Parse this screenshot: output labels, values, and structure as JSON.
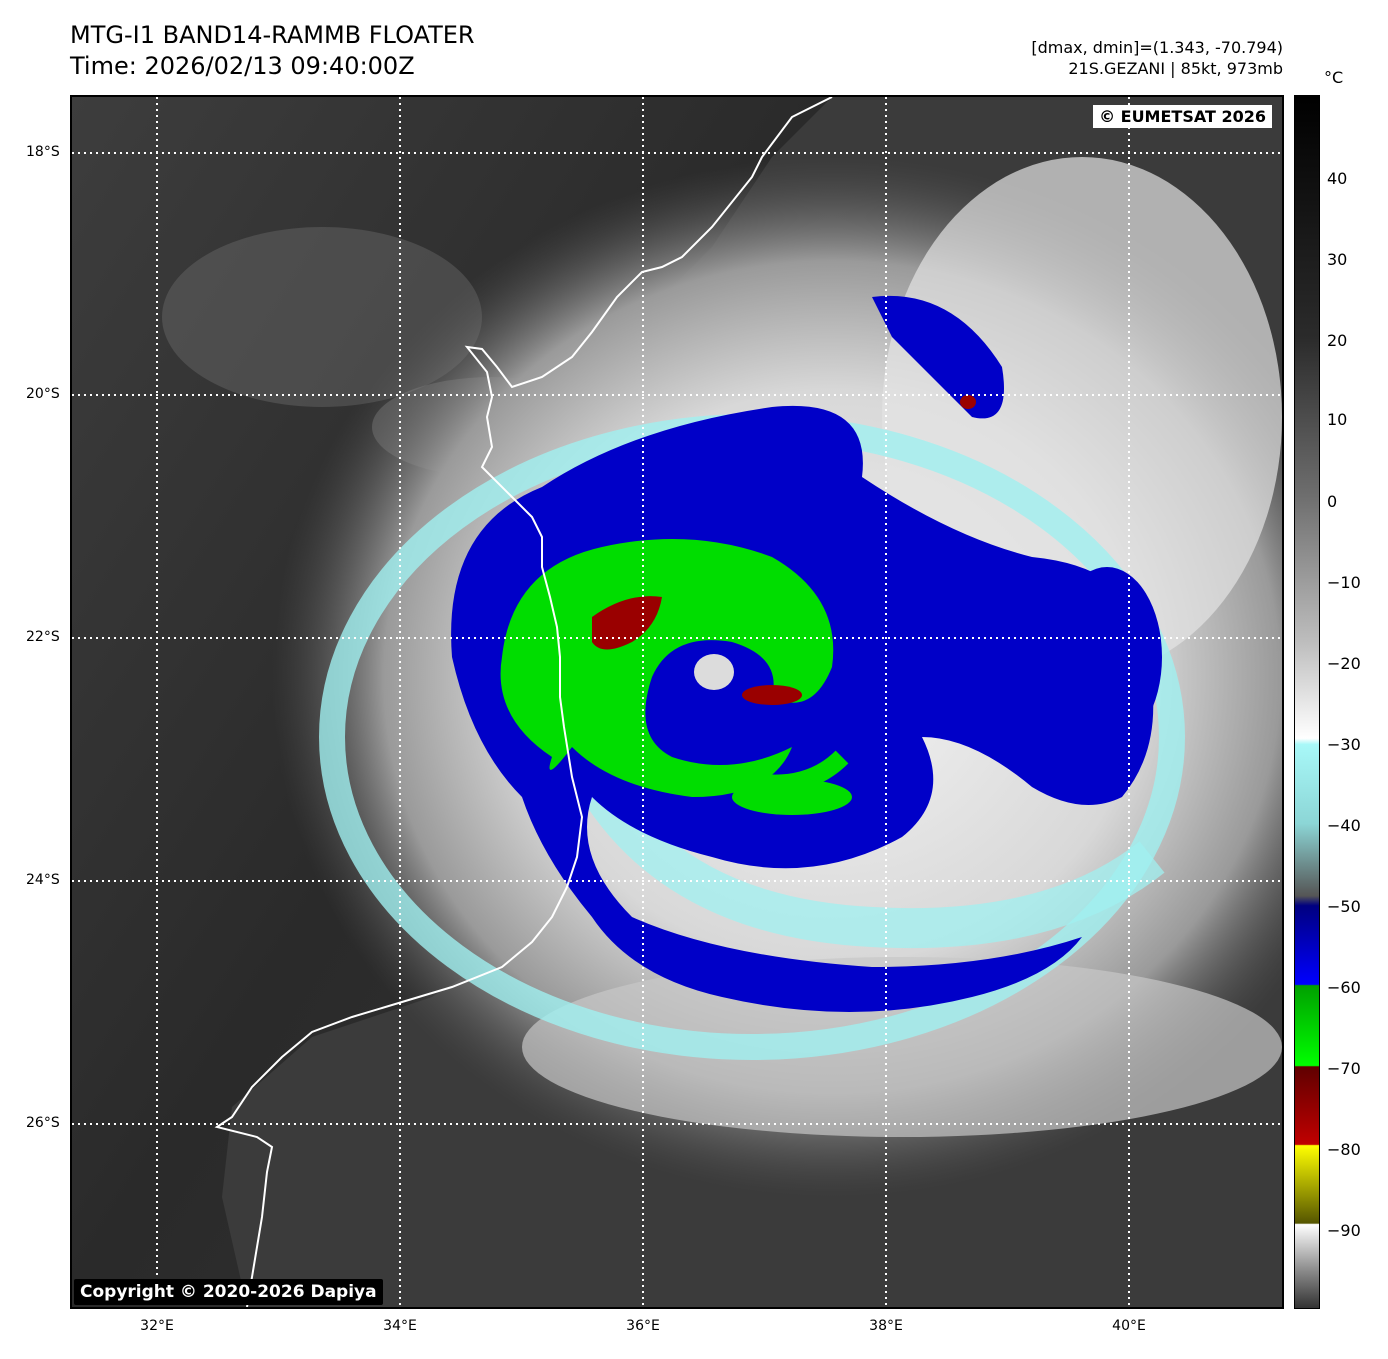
{
  "header": {
    "title_line1": "MTG-I1 BAND14-RAMMB FLOATER",
    "title_line2": "Time: 2026/02/13 09:40:00Z",
    "meta_line1": "[dmax, dmin]=(1.343, -70.794)",
    "meta_line2": "21S.GEZANI | 85kt, 973mb"
  },
  "map": {
    "eumetsat_credit": "© EUMETSAT 2026",
    "copyright": "Copyright © 2020-2026 Dapiya",
    "lat_labels": [
      "18°S",
      "20°S",
      "22°S",
      "24°S",
      "26°S"
    ],
    "lon_labels": [
      "32°E",
      "34°E",
      "36°E",
      "38°E",
      "40°E"
    ]
  },
  "colorbar": {
    "unit": "°C",
    "tick_labels": [
      "40",
      "30",
      "20",
      "10",
      "0",
      "−10",
      "−20",
      "−30",
      "−40",
      "−50",
      "−60",
      "−70",
      "−80",
      "−90"
    ]
  },
  "colors": {
    "land": "#333333",
    "coast": "#ffffff",
    "cold_top_blue": "#0000c8",
    "colder_top_green": "#00dd00",
    "coldest_top_red": "#9a0000",
    "cyan_band": "#a0f0f0"
  }
}
